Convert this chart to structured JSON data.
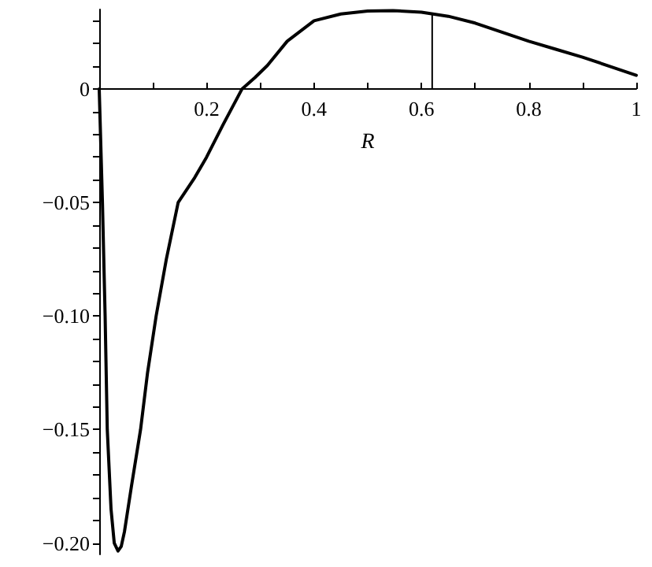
{
  "chart_data": {
    "type": "line",
    "xlabel": "R",
    "series": [
      {
        "color": "#000000",
        "x": [
          0,
          0.003,
          0.006,
          0.011,
          0.015,
          0.022,
          0.028,
          0.035,
          0.041,
          0.047,
          0.06,
          0.077,
          0.09,
          0.106,
          0.125,
          0.147,
          0.178,
          0.2,
          0.23,
          0.266,
          0.29,
          0.313,
          0.35,
          0.4,
          0.45,
          0.5,
          0.547,
          0.6,
          0.65,
          0.7,
          0.75,
          0.8,
          0.85,
          0.9,
          0.95,
          1.0
        ],
        "values": [
          0,
          -0.025,
          -0.05,
          -0.1,
          -0.15,
          -0.185,
          -0.2,
          -0.2035,
          -0.2015,
          -0.195,
          -0.175,
          -0.15,
          -0.125,
          -0.1,
          -0.075,
          -0.05,
          -0.039,
          -0.03,
          -0.016,
          0,
          0.005,
          0.0103,
          0.021,
          0.03,
          0.033,
          0.0343,
          0.0345,
          0.0338,
          0.032,
          0.029,
          0.025,
          0.021,
          0.0175,
          0.014,
          0.01,
          0.006
        ]
      },
      {
        "color": "#000000",
        "x": [
          0.62,
          0.62
        ],
        "values": [
          0,
          0.033
        ]
      }
    ],
    "xlim": [
      0,
      1
    ],
    "xticks": [
      {
        "value": 0.1,
        "label": null
      },
      0.2,
      {
        "value": 0.3,
        "label": null
      },
      0.4,
      {
        "value": 0.5,
        "label": null
      },
      0.6,
      {
        "value": 0.7,
        "label": null
      },
      0.8,
      {
        "value": 0.9,
        "label": null
      },
      1
    ],
    "ylim": [
      -0.205,
      0.035
    ],
    "yticks": [
      {
        "value": -0.2,
        "label": "−0.20"
      },
      {
        "value": -0.19,
        "label": null
      },
      {
        "value": -0.18,
        "label": null
      },
      {
        "value": -0.17,
        "label": null
      },
      {
        "value": -0.16,
        "label": null
      },
      {
        "value": -0.15,
        "label": "−0.15"
      },
      {
        "value": -0.14,
        "label": null
      },
      {
        "value": -0.13,
        "label": null
      },
      {
        "value": -0.12,
        "label": null
      },
      {
        "value": -0.11,
        "label": null
      },
      {
        "value": -0.1,
        "label": "−0.10"
      },
      {
        "value": -0.09,
        "label": null
      },
      {
        "value": -0.08,
        "label": null
      },
      {
        "value": -0.07,
        "label": null
      },
      {
        "value": -0.06,
        "label": null
      },
      {
        "value": -0.05,
        "label": "−0.05"
      },
      {
        "value": -0.04,
        "label": null
      },
      {
        "value": -0.03,
        "label": null
      },
      {
        "value": -0.02,
        "label": null
      },
      {
        "value": -0.01,
        "label": null
      },
      0,
      {
        "value": 0.01,
        "label": null
      },
      {
        "value": 0.02,
        "label": null
      },
      {
        "value": 0.03,
        "label": null
      }
    ],
    "grid": false,
    "marker": "none",
    "line_style": "solid"
  }
}
